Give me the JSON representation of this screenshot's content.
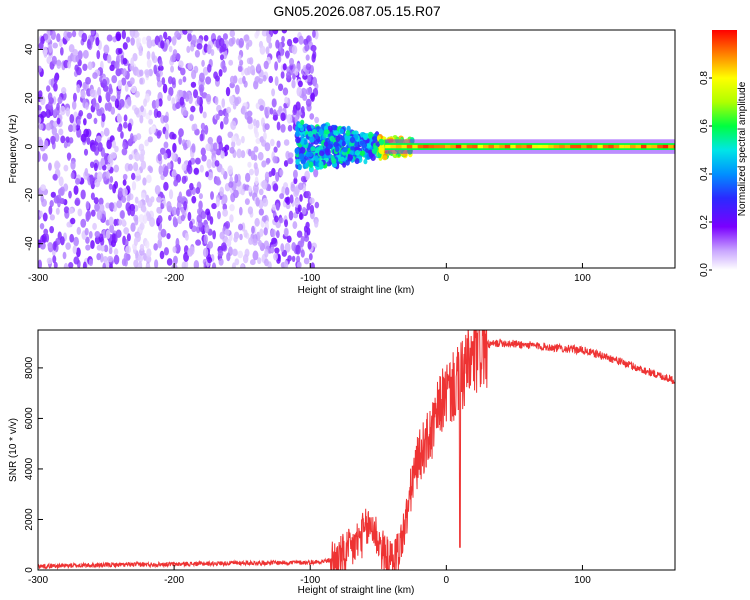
{
  "title": "GN05.2026.087.05.15.R07",
  "chart_data": [
    {
      "type": "heatmap",
      "xlabel": "Height of straight line (km)",
      "ylabel": "Frequency (Hz)",
      "xlim": [
        -300,
        168
      ],
      "ylim": [
        -50,
        48
      ],
      "xticks": [
        -300,
        -200,
        -100,
        0,
        100
      ],
      "yticks": [
        -40,
        -20,
        0,
        20,
        40
      ],
      "colorbar": {
        "label": "Normalized spectral amplitude",
        "range": [
          0.0,
          1.0
        ],
        "ticks": [
          0.0,
          0.2,
          0.4,
          0.6,
          0.8
        ],
        "colormap": [
          "#ffffff",
          "#b98cff",
          "#6a00ff",
          "#2a2aff",
          "#0090ff",
          "#00e6e6",
          "#00ff40",
          "#b0ff00",
          "#ffff00",
          "#ff8000",
          "#ff0000"
        ]
      },
      "features": [
        {
          "x_range": [
            -300,
            -95
          ],
          "y_range": [
            -50,
            48
          ],
          "amplitude": 0.12
        },
        {
          "x_range": [
            -100,
            -30
          ],
          "y_range": [
            -10,
            12
          ],
          "amplitude": 0.35
        },
        {
          "x_range": [
            -50,
            168
          ],
          "y_range": [
            -1,
            1
          ],
          "amplitude": 0.95
        }
      ]
    },
    {
      "type": "line",
      "xlabel": "Height of straight line (km)",
      "ylabel": "SNR (10 * v/v)",
      "xlim": [
        -300,
        168
      ],
      "ylim": [
        0,
        9500
      ],
      "xticks": [
        -300,
        -200,
        -100,
        0,
        100
      ],
      "yticks": [
        0,
        2000,
        4000,
        6000,
        8000
      ],
      "color": "#ee3333",
      "series": [
        {
          "x": [
            -300,
            -250,
            -200,
            -150,
            -100,
            -80,
            -70,
            -60,
            -55,
            -50,
            -45,
            -40,
            -35,
            -30,
            -25,
            -20,
            -15,
            -10,
            -5,
            0,
            5,
            10,
            15,
            20,
            25,
            30,
            40,
            50,
            60,
            80,
            100,
            120,
            140,
            168
          ],
          "y": [
            150,
            200,
            230,
            280,
            300,
            400,
            800,
            1500,
            1800,
            1200,
            500,
            300,
            800,
            1800,
            3500,
            4500,
            5000,
            5500,
            6500,
            7000,
            7200,
            7500,
            8000,
            8300,
            8700,
            8900,
            9000,
            8950,
            8900,
            8800,
            8700,
            8400,
            8000,
            7500
          ]
        }
      ]
    }
  ]
}
